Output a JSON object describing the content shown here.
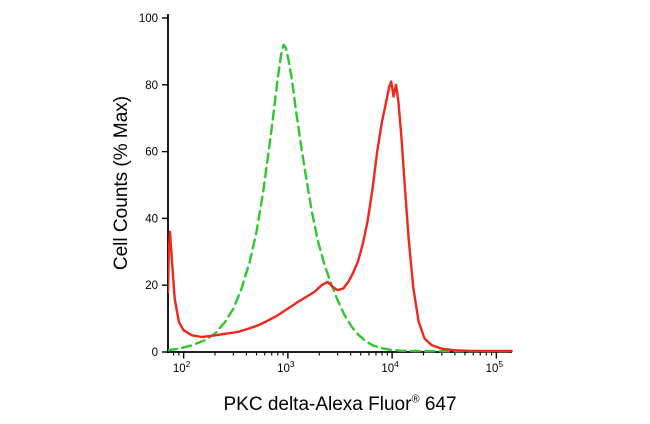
{
  "figure": {
    "ylabel": "Cell Counts (% Max)",
    "xlabel_main": "PKC delta-Alexa Fluor",
    "xlabel_sup": "®",
    "xlabel_tail": " 647"
  },
  "colors": {
    "background": "#ffffff",
    "axis": "#000000",
    "dashed_series": "#2ec82e",
    "solid_series": "#f3261b"
  },
  "chart_data": {
    "type": "line",
    "title": "",
    "xlabel": "PKC delta-Alexa Fluor® 647",
    "ylabel": "Cell Counts (% Max)",
    "x_scale": "log10",
    "xlim_log10": [
      1.85,
      5.15
    ],
    "ylim": [
      0,
      101
    ],
    "x_major_tick_exponents": [
      2,
      3,
      4,
      5
    ],
    "y_ticks": [
      0,
      20,
      40,
      60,
      80,
      100
    ],
    "grid": false,
    "legend": "none",
    "series": [
      {
        "name": "control-dashed-green",
        "style": "dashed",
        "color": "#2ec82e",
        "points": [
          [
            70.8,
            0.5
          ],
          [
            90,
            1
          ],
          [
            120,
            2
          ],
          [
            160,
            3.5
          ],
          [
            200,
            5.5
          ],
          [
            250,
            9
          ],
          [
            300,
            13
          ],
          [
            360,
            19
          ],
          [
            430,
            27
          ],
          [
            500,
            36
          ],
          [
            580,
            48
          ],
          [
            660,
            61
          ],
          [
            740,
            73
          ],
          [
            800,
            82
          ],
          [
            860,
            89
          ],
          [
            910,
            92
          ],
          [
            960,
            91
          ],
          [
            1020,
            87
          ],
          [
            1100,
            81
          ],
          [
            1200,
            72
          ],
          [
            1350,
            61
          ],
          [
            1500,
            52
          ],
          [
            1700,
            42
          ],
          [
            1950,
            33
          ],
          [
            2250,
            26
          ],
          [
            2600,
            20.5
          ],
          [
            3000,
            15.5
          ],
          [
            3500,
            11
          ],
          [
            4100,
            7.5
          ],
          [
            4800,
            5
          ],
          [
            5600,
            3.2
          ],
          [
            6500,
            2
          ],
          [
            7800,
            1.2
          ],
          [
            9500,
            0.7
          ],
          [
            12000,
            0.4
          ],
          [
            16000,
            0.3
          ],
          [
            25000,
            0.25
          ],
          [
            50000,
            0.25
          ],
          [
            140000,
            0.25
          ]
        ]
      },
      {
        "name": "pkc-delta-solid-red",
        "style": "solid",
        "color": "#f3261b",
        "points": [
          [
            70.8,
            18
          ],
          [
            72,
            30
          ],
          [
            74,
            36
          ],
          [
            77,
            28
          ],
          [
            82,
            16
          ],
          [
            90,
            9
          ],
          [
            100,
            6.5
          ],
          [
            120,
            5
          ],
          [
            150,
            4.5
          ],
          [
            200,
            5
          ],
          [
            260,
            5.5
          ],
          [
            330,
            6
          ],
          [
            420,
            7
          ],
          [
            520,
            8
          ],
          [
            650,
            9.5
          ],
          [
            800,
            11
          ],
          [
            1000,
            13
          ],
          [
            1250,
            15
          ],
          [
            1500,
            16.5
          ],
          [
            1800,
            18
          ],
          [
            2100,
            20
          ],
          [
            2400,
            21
          ],
          [
            2700,
            19.5
          ],
          [
            3000,
            18.5
          ],
          [
            3400,
            19
          ],
          [
            3800,
            21
          ],
          [
            4200,
            23.5
          ],
          [
            4700,
            27
          ],
          [
            5200,
            32
          ],
          [
            5800,
            39
          ],
          [
            6500,
            49
          ],
          [
            7200,
            60
          ],
          [
            8000,
            69
          ],
          [
            8800,
            75
          ],
          [
            9400,
            79.5
          ],
          [
            9800,
            81
          ],
          [
            10300,
            76.5
          ],
          [
            10900,
            80
          ],
          [
            11500,
            75
          ],
          [
            12300,
            64
          ],
          [
            13200,
            50
          ],
          [
            14500,
            33
          ],
          [
            16000,
            19
          ],
          [
            18000,
            9
          ],
          [
            20500,
            4
          ],
          [
            24000,
            2
          ],
          [
            30000,
            1
          ],
          [
            40000,
            0.5
          ],
          [
            60000,
            0.3
          ],
          [
            90000,
            0.3
          ],
          [
            140000,
            0.3
          ]
        ]
      }
    ]
  }
}
